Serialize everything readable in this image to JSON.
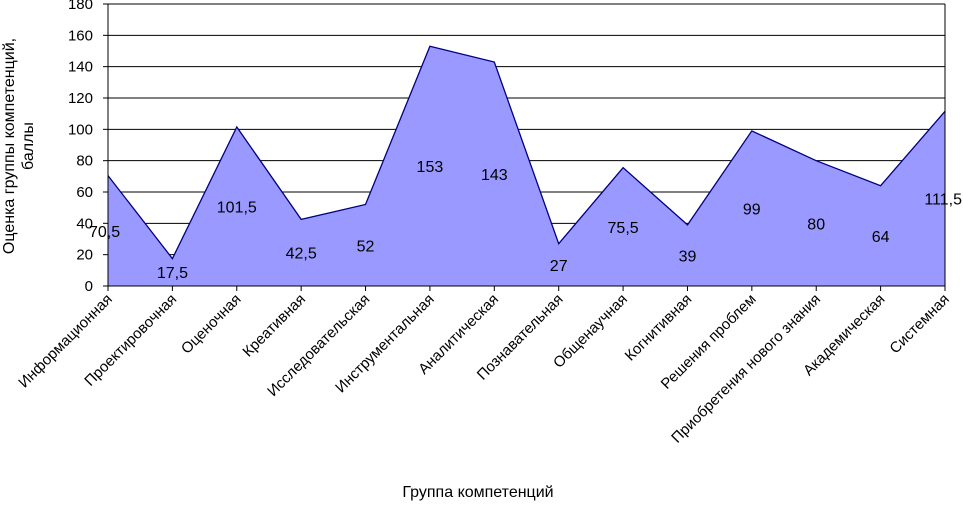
{
  "chart_data": {
    "type": "area",
    "xlabel": "Группа компетенций",
    "ylabel_lines": [
      "Оценка группы компетенций,",
      "баллы"
    ],
    "ylim": [
      0,
      180
    ],
    "yticks": [
      0,
      20,
      40,
      60,
      80,
      100,
      120,
      140,
      160,
      180
    ],
    "grid": "horizontal",
    "categories": [
      "Информационная",
      "Проектировочная",
      "Оценочная",
      "Креативная",
      "Исследовательская",
      "Инструментальная",
      "Аналитическая",
      "Познавательная",
      "Общенаучная",
      "Когнитивная",
      "Решения проблем",
      "Приобретения нового знания",
      "Академическая",
      "Системная"
    ],
    "values": [
      70.5,
      17.5,
      101.5,
      42.5,
      52,
      153,
      143,
      27,
      75.5,
      39,
      99,
      80,
      64,
      111.5
    ],
    "data_labels": [
      "70,5",
      "17,5",
      "101,5",
      "42,5",
      "52",
      "153",
      "143",
      "27",
      "75,5",
      "39",
      "99",
      "80",
      "64",
      "111,5"
    ],
    "colors": {
      "area_fill": "#9999ff",
      "area_stroke": "#000080",
      "grid": "#000000",
      "axis": "#000000"
    }
  }
}
